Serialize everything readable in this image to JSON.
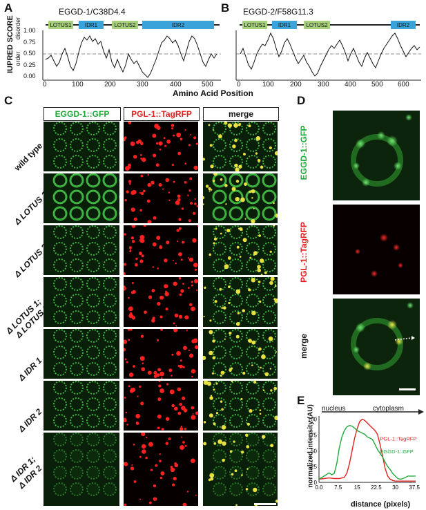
{
  "panels": {
    "A": "A",
    "B": "B",
    "C": "C",
    "D": "D",
    "E": "E"
  },
  "iupred": {
    "y_axis_title": "IUPRED SCORE",
    "disorder_label": "disorder",
    "order_label": "order",
    "x_axis_title": "Amino Acid Position",
    "y_ticks": [
      "1.00",
      "0.75",
      "0.50",
      "0.25",
      "0.00"
    ],
    "plotA": {
      "protein": "EGGD-1/C38D4.4",
      "x_ticks": [
        "0",
        "100",
        "200",
        "300",
        "400",
        "500"
      ],
      "domains": [
        "LOTUS1",
        "IDR1",
        "LOTUS2",
        "IDR2"
      ]
    },
    "plotB": {
      "protein": "EGGD-2/F58G11.3",
      "x_ticks": [
        "0",
        "100",
        "200",
        "300",
        "400",
        "500",
        "600"
      ],
      "domains": [
        "LOTUS1",
        "IDR1",
        "LOTUS2",
        "IDR2"
      ]
    }
  },
  "panelC": {
    "columns": [
      "EGGD-1::GFP",
      "PGL-1::TagRFP",
      "merge"
    ],
    "column_colors": [
      "#1ea83a",
      "#e0201c",
      "#111111"
    ],
    "rows": [
      "wild type",
      "Δ LOTUS 1",
      "Δ LOTUS 2",
      "Δ LOTUS 1;",
      "Δ LOTUS 2",
      "Δ IDR 1",
      "Δ IDR 2",
      "Δ IDR 1;",
      "Δ IDR 2"
    ]
  },
  "panelD": {
    "labels": [
      "EGGD-1::GFP",
      "PGL-1::TagRFP",
      "merge"
    ]
  },
  "chart_data": {
    "type": "line",
    "xlabel": "distance (pixels)",
    "ylabel": "normalized intensity (AU)",
    "x_ticks": [
      "0.0",
      "7.5",
      "15",
      "22.5",
      "30",
      "37.5"
    ],
    "y_ticks": [
      "0",
      "25",
      "50",
      "75",
      "100"
    ],
    "xlim": [
      0,
      38
    ],
    "ylim": [
      0,
      105
    ],
    "arrow_left": "nucleus",
    "arrow_right": "cytoplasm",
    "series": [
      {
        "name": "PGL-1::TagRFP",
        "color": "#e0201c",
        "x": [
          0,
          2,
          4,
          6,
          8,
          10,
          11,
          12,
          13,
          14,
          15,
          16,
          17,
          18,
          19,
          20,
          21,
          22,
          23,
          24,
          25,
          26,
          27,
          28,
          29,
          30,
          31,
          32,
          34,
          36,
          38
        ],
        "y": [
          5,
          6,
          7,
          6,
          6,
          8,
          15,
          30,
          50,
          70,
          85,
          96,
          100,
          98,
          94,
          90,
          86,
          82,
          76,
          60,
          42,
          22,
          10,
          5,
          3,
          2,
          2,
          2,
          2,
          2,
          2
        ]
      },
      {
        "name": "EGGD-1::GFP",
        "color": "#1ea83a",
        "x": [
          0,
          2,
          4,
          5,
          6,
          7,
          8,
          9,
          10,
          11,
          12,
          13,
          14,
          15,
          16,
          17,
          18,
          19,
          20,
          21,
          22,
          23,
          24,
          25,
          26,
          27,
          28,
          29,
          30,
          31,
          32,
          33,
          34,
          35,
          36,
          38
        ],
        "y": [
          5,
          10,
          15,
          12,
          14,
          30,
          55,
          72,
          82,
          88,
          90,
          89,
          86,
          82,
          80,
          78,
          76,
          72,
          70,
          68,
          60,
          52,
          46,
          40,
          32,
          25,
          20,
          14,
          10,
          6,
          5,
          6,
          8,
          10,
          10,
          10
        ]
      }
    ]
  }
}
